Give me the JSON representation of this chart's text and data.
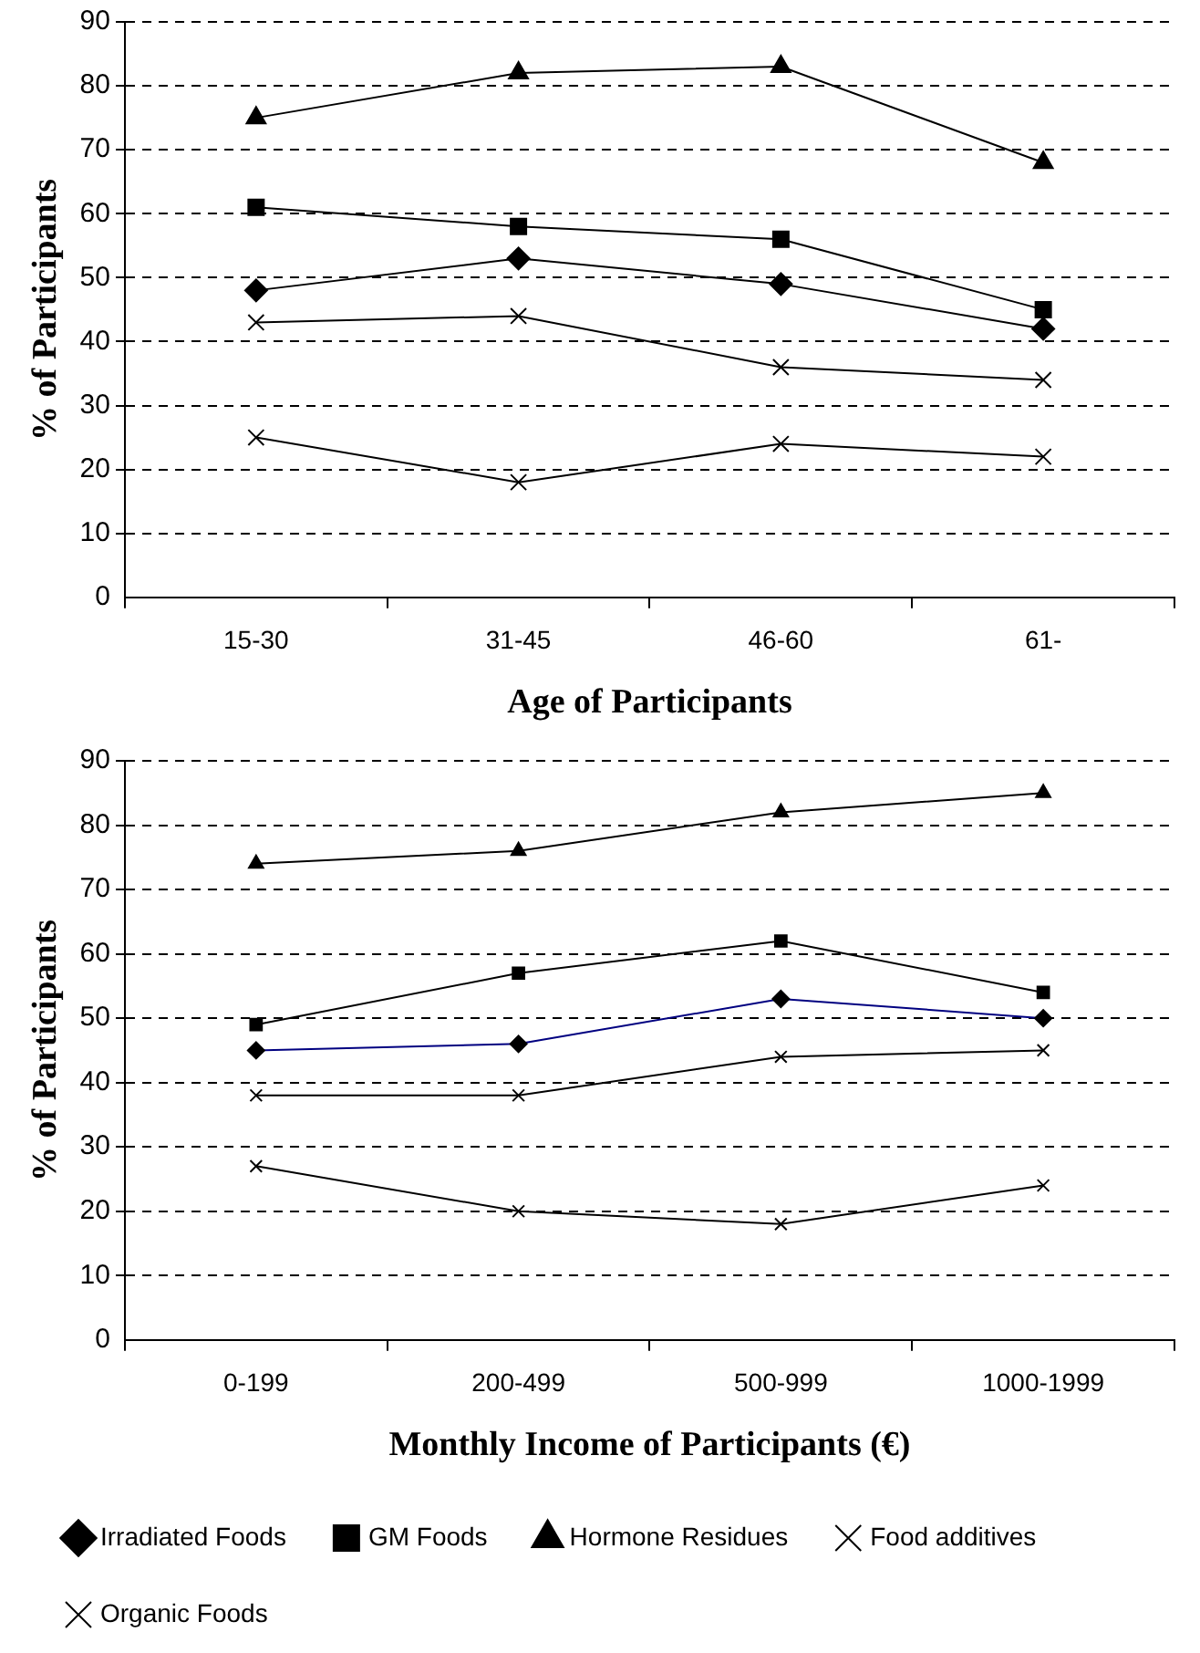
{
  "chart_data": [
    {
      "type": "line",
      "categories": [
        "15-30",
        "31-45",
        "46-60",
        "61-"
      ],
      "xlabel": "Age of Participants",
      "ylabel": "% of Participants",
      "ylim": [
        0,
        90
      ],
      "yticks": [
        0,
        10,
        20,
        30,
        40,
        50,
        60,
        70,
        80,
        90
      ],
      "grid": "y",
      "legend": false,
      "series": [
        {
          "color": "#000000",
          "marker": "diamond",
          "values": [
            48,
            53,
            49,
            42
          ]
        },
        {
          "color": "#000000",
          "marker": "square",
          "values": [
            61,
            58,
            56,
            45
          ]
        },
        {
          "color": "#000000",
          "marker": "triangle",
          "values": [
            75,
            82,
            83,
            68
          ]
        },
        {
          "color": "#000000",
          "marker": "cross",
          "values": [
            43,
            44,
            36,
            34
          ]
        },
        {
          "color": "#000000",
          "marker": "cross",
          "values": [
            25,
            18,
            24,
            22
          ]
        }
      ]
    },
    {
      "type": "line",
      "categories": [
        "0-199",
        "200-499",
        "500-999",
        "1000-1999"
      ],
      "xlabel": "Monthly Income of Participants (€)",
      "ylabel": "% of Participants",
      "ylim": [
        0,
        90
      ],
      "yticks": [
        0,
        10,
        20,
        30,
        40,
        50,
        60,
        70,
        80,
        90
      ],
      "grid": "y",
      "legend": "bottom",
      "series": [
        {
          "name": "Irradiated Foods",
          "color": "#000080",
          "marker": "diamond",
          "values": [
            45,
            46,
            53,
            50
          ]
        },
        {
          "name": "GM Foods",
          "color": "#000000",
          "marker": "square",
          "values": [
            49,
            57,
            62,
            54
          ]
        },
        {
          "name": "Hormone Residues",
          "color": "#000000",
          "marker": "triangle",
          "values": [
            74,
            76,
            82,
            85
          ]
        },
        {
          "name": "Food additives",
          "color": "#000000",
          "marker": "cross",
          "values": [
            38,
            38,
            44,
            45
          ]
        },
        {
          "name": "Organic Foods",
          "color": "#000000",
          "marker": "cross",
          "values": [
            27,
            20,
            18,
            24
          ]
        }
      ]
    }
  ]
}
